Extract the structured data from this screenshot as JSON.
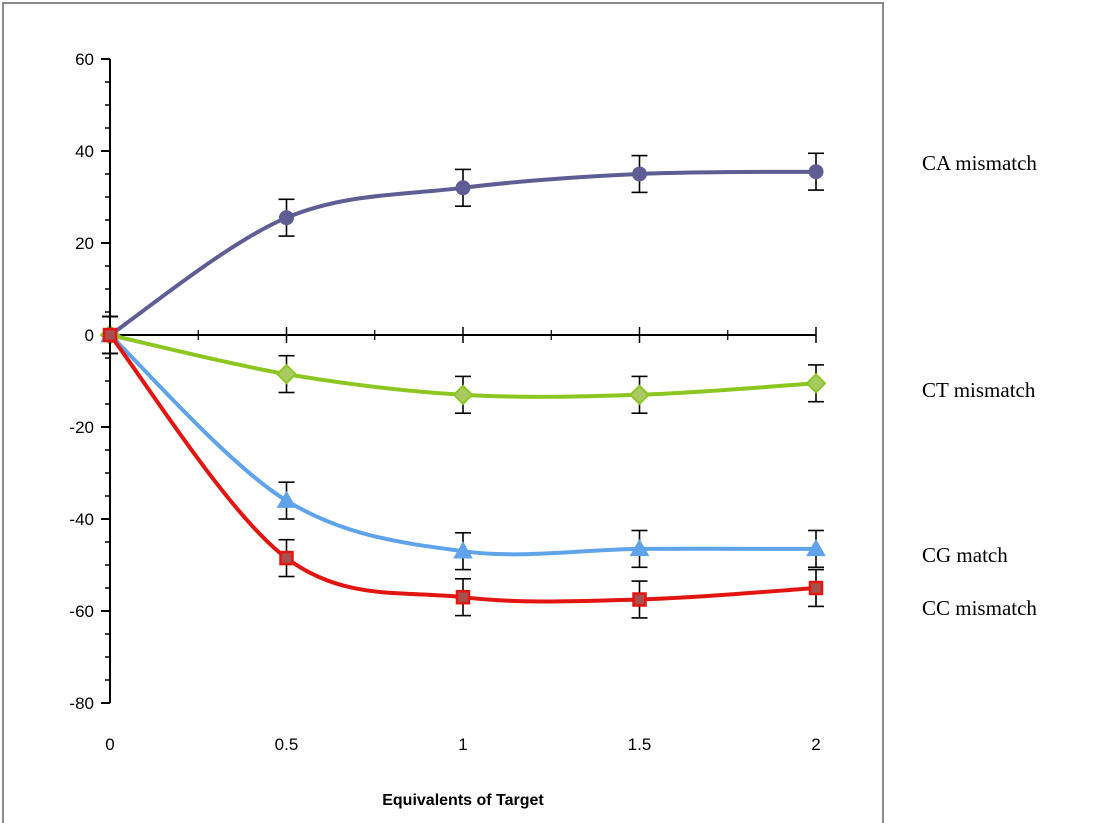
{
  "chart_data": {
    "type": "line",
    "title": "",
    "xlabel": "Equivalents of Target",
    "ylabel": "",
    "x": [
      0,
      0.5,
      1,
      1.5,
      2
    ],
    "x_ticks": [
      "0",
      "0.5",
      "1",
      "1.5",
      "2"
    ],
    "xlim": [
      0,
      2
    ],
    "ylim": [
      -80,
      60
    ],
    "y_ticks": [
      60,
      40,
      20,
      0,
      -20,
      -40,
      -60,
      -80
    ],
    "grid": false,
    "legend": "right, labels beside line ends",
    "error_bar": 4,
    "series": [
      {
        "name": "CA mismatch",
        "values": [
          0,
          25.5,
          32,
          35,
          35.5
        ],
        "color": "#5E5D94",
        "marker": "circle"
      },
      {
        "name": "CT mismatch",
        "values": [
          0,
          -8.5,
          -13,
          -13,
          -10.5
        ],
        "color": "#8CC620",
        "marker": "diamond",
        "marker_fill": "#A9C963"
      },
      {
        "name": "CG match",
        "values": [
          0,
          -36,
          -47,
          -46.5,
          -46.5
        ],
        "color": "#5FA3EA",
        "marker": "triangle"
      },
      {
        "name": "CC mismatch",
        "values": [
          0,
          -48.5,
          -57,
          -57.5,
          -55
        ],
        "color": "#E31510",
        "marker": "square",
        "marker_fill": "#A8504E"
      }
    ]
  }
}
